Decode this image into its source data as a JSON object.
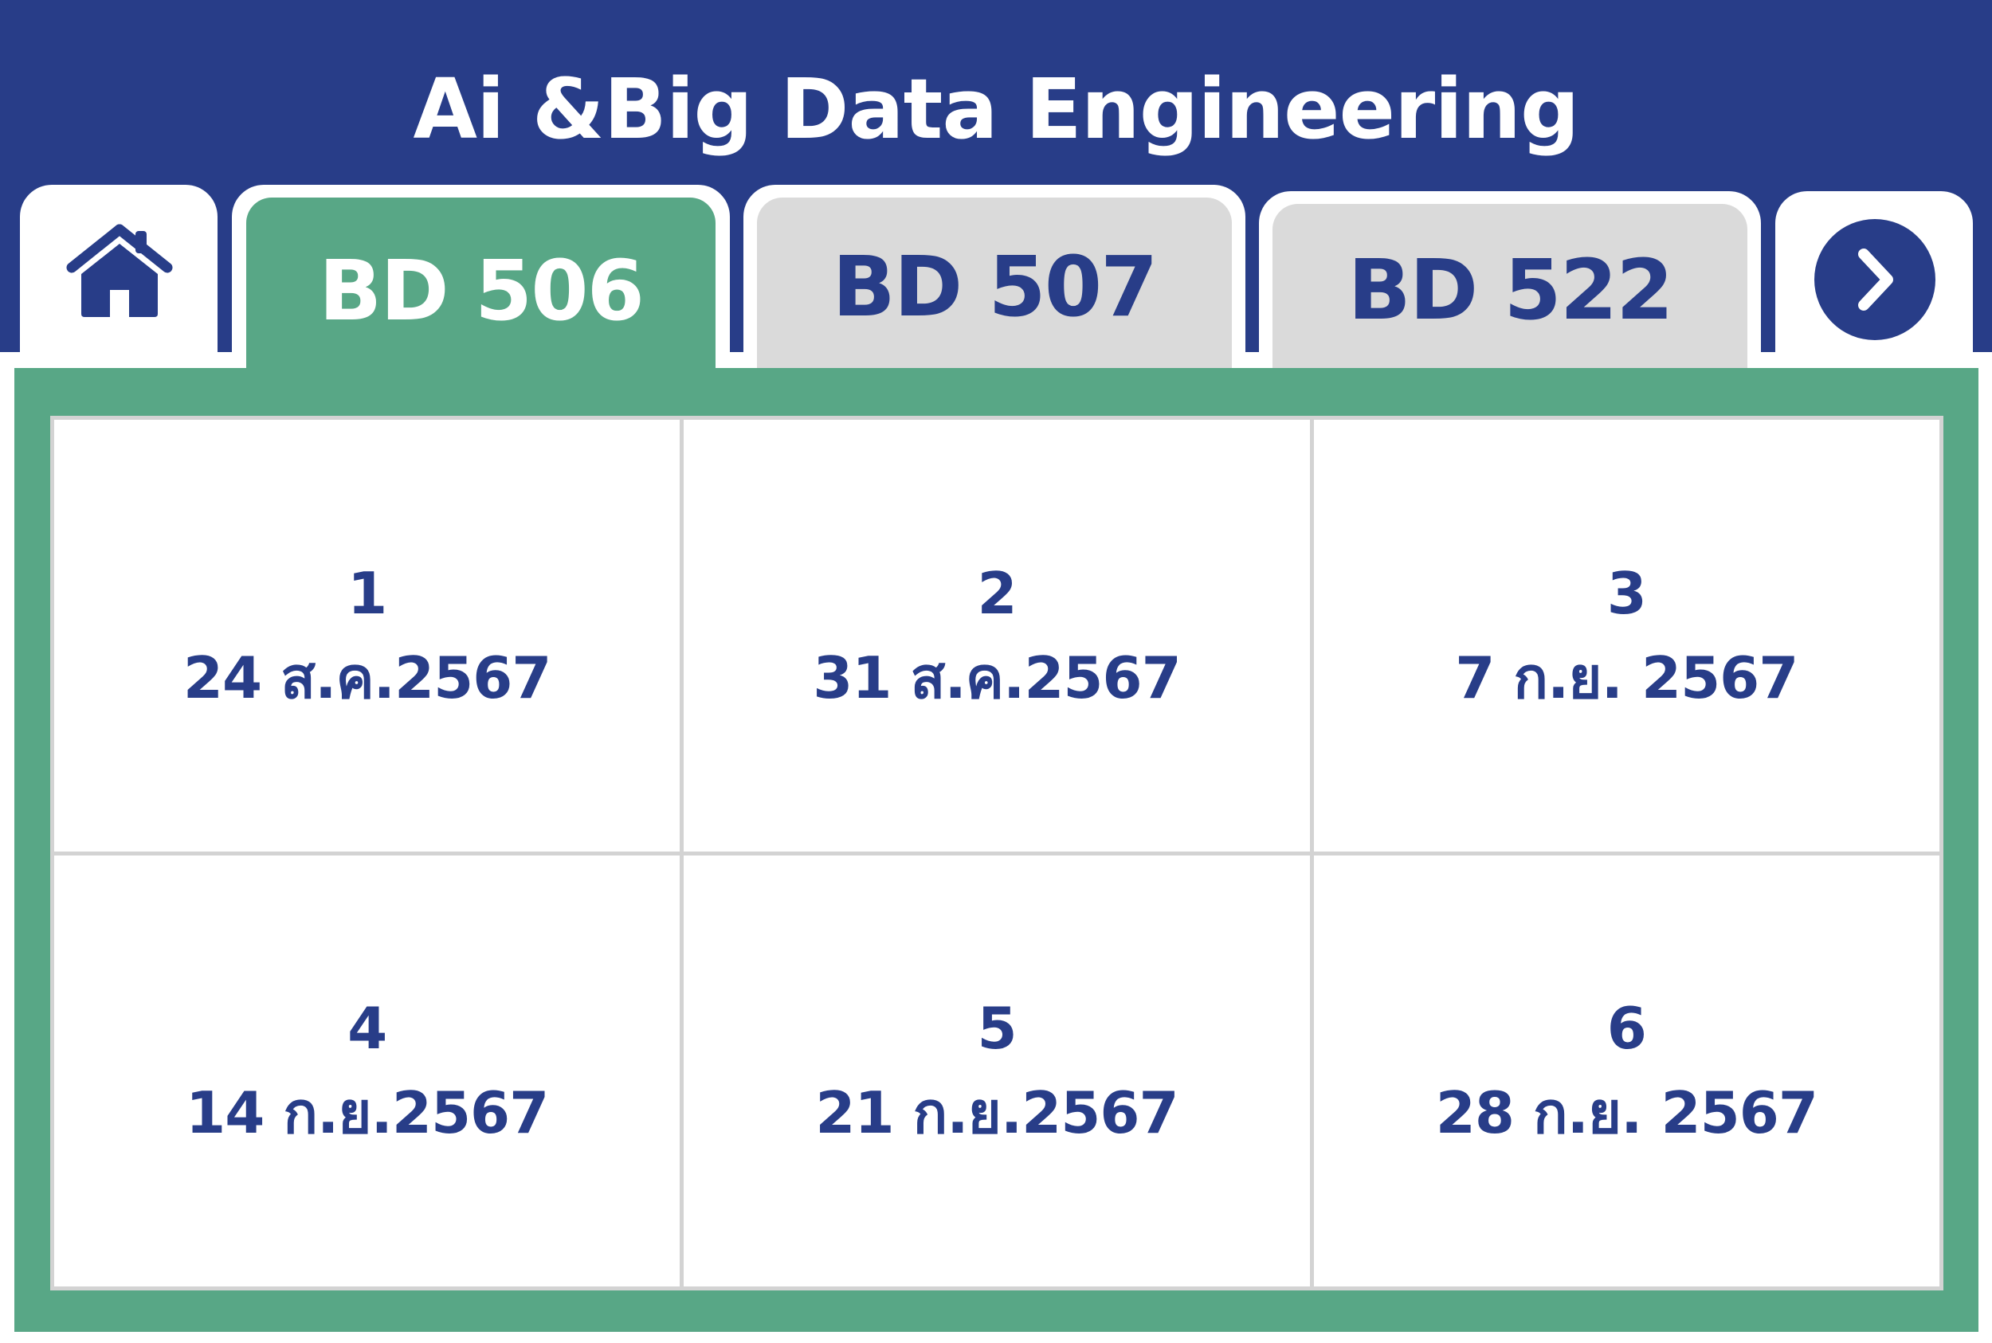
{
  "header": {
    "title": "Ai &Big Data Engineering"
  },
  "tabs": [
    {
      "label": "BD 506",
      "active": true
    },
    {
      "label": "BD 507",
      "active": false
    },
    {
      "label": "BD 522",
      "active": false
    }
  ],
  "icons": {
    "home": "home-icon",
    "next": "chevron-right-icon"
  },
  "schedule": {
    "cells": [
      {
        "number": "1",
        "date": "24 ส.ค.2567"
      },
      {
        "number": "2",
        "date": "31 ส.ค.2567"
      },
      {
        "number": "3",
        "date": "7 ก.ย. 2567"
      },
      {
        "number": "4",
        "date": "14 ก.ย.2567"
      },
      {
        "number": "5",
        "date": "21 ก.ย.2567"
      },
      {
        "number": "6",
        "date": "28 ก.ย. 2567"
      }
    ]
  },
  "colors": {
    "header_blue": "#283d88",
    "active_green": "#58a786",
    "inactive_gray": "#dadada",
    "text_blue": "#283d88"
  }
}
